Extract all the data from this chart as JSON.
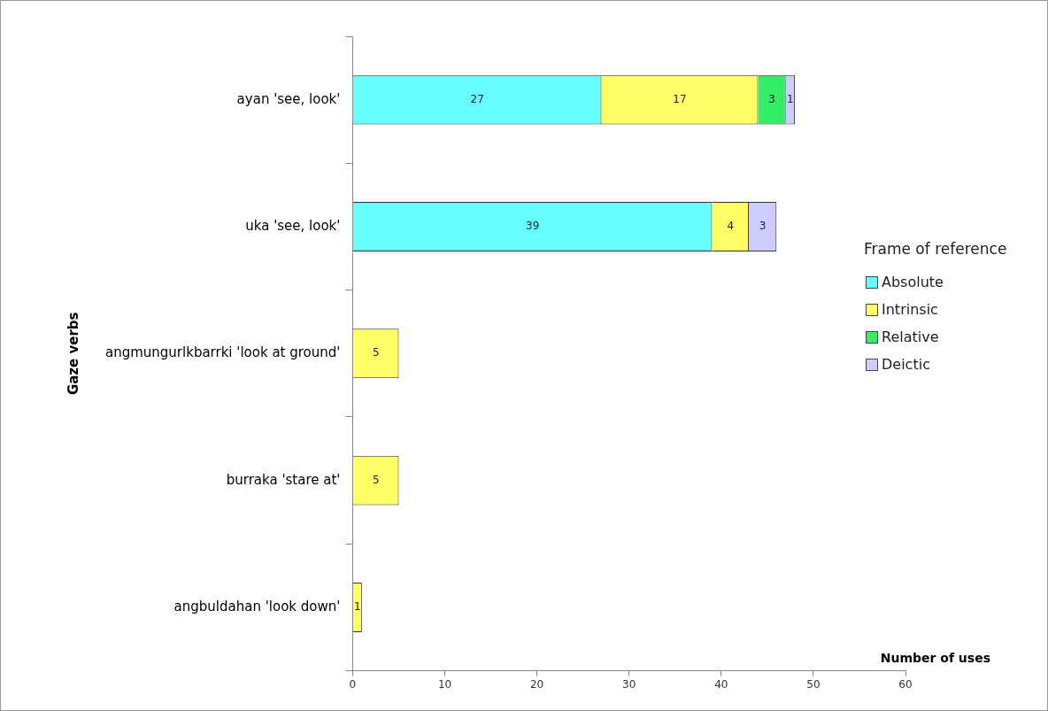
{
  "chart_data": {
    "type": "bar",
    "orientation": "horizontal",
    "stacked": true,
    "categories": [
      "ayan 'see, look'",
      "uka 'see, look'",
      "angmungurlkbarrki 'look at ground'",
      "burraka 'stare at'",
      "angbuldahan 'look down'"
    ],
    "series": [
      {
        "name": "Absolute",
        "color": "#66ffff",
        "values": [
          27,
          39,
          null,
          null,
          null
        ]
      },
      {
        "name": "Intrinsic",
        "color": "#ffff66",
        "values": [
          17,
          4,
          5,
          5,
          1
        ]
      },
      {
        "name": "Relative",
        "color": "#33ee66",
        "values": [
          3,
          null,
          null,
          null,
          null
        ]
      },
      {
        "name": "Deictic",
        "color": "#ccccff",
        "values": [
          1,
          3,
          null,
          null,
          null
        ]
      }
    ],
    "xlim": [
      0,
      60
    ],
    "xticks": [
      0,
      10,
      20,
      30,
      40,
      50,
      60
    ],
    "xlabel": "Number of uses",
    "ylabel": "Gaze verbs",
    "legend_title": "Frame of reference",
    "legend": "right",
    "data_labels": true
  }
}
